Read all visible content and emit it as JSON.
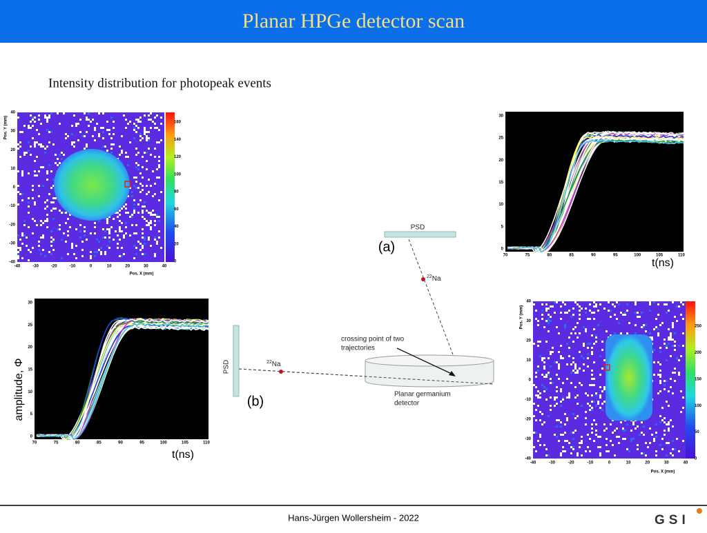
{
  "header": {
    "title": "Planar HPGe detector scan"
  },
  "subtitle": "Intensity distribution for photopeak events",
  "heatmap_top": {
    "y_label": "Pos. Y (mm)",
    "x_label": "Pos. X (mm)",
    "x_ticks": [
      "-40",
      "-30",
      "-20",
      "-10",
      "0",
      "10",
      "20",
      "30",
      "40"
    ],
    "y_ticks": [
      "-40",
      "-30",
      "-20",
      "-10",
      "0",
      "10",
      "20",
      "30",
      "40"
    ],
    "colorbar_ticks": [
      "0",
      "20",
      "40",
      "60",
      "80",
      "100",
      "120",
      "140",
      "160"
    ]
  },
  "signal_a": {
    "x_ticks": [
      "70",
      "75",
      "80",
      "85",
      "90",
      "95",
      "100",
      "105",
      "110"
    ],
    "y_ticks": [
      "0",
      "5",
      "10",
      "15",
      "20",
      "25",
      "30"
    ],
    "x_label": "t(ns)"
  },
  "signal_b": {
    "x_ticks": [
      "70",
      "75",
      "80",
      "85",
      "90",
      "95",
      "100",
      "105",
      "110"
    ],
    "y_ticks": [
      "0",
      "5",
      "10",
      "15",
      "20",
      "25",
      "30"
    ],
    "x_label": "t(ns)",
    "y_label": "amplitude, Φ"
  },
  "heatmap_bottom": {
    "y_label": "Pos. Y (mm)",
    "x_label": "Pos. X (mm)",
    "x_ticks": [
      "-40",
      "-30",
      "-20",
      "-10",
      "0",
      "10",
      "20",
      "30",
      "40"
    ],
    "y_ticks": [
      "-40",
      "-30",
      "-20",
      "-10",
      "0",
      "10",
      "20",
      "30",
      "40"
    ],
    "colorbar_ticks": [
      "0",
      "50",
      "100",
      "150",
      "200",
      "250"
    ]
  },
  "diagram": {
    "label_a": "(a)",
    "label_b": "(b)",
    "psd_top": "PSD",
    "psd_left": "PSD",
    "source_top": {
      "mass": "22",
      "element": "Na"
    },
    "source_left": {
      "mass": "22",
      "element": "Na"
    },
    "crossing": [
      "crossing point of two",
      "trajectories"
    ],
    "detector": [
      "Planar germanium",
      "detector"
    ]
  },
  "footer": {
    "author": "Hans-Jürgen Wollersheim - 2022",
    "logo": "GSI"
  }
}
